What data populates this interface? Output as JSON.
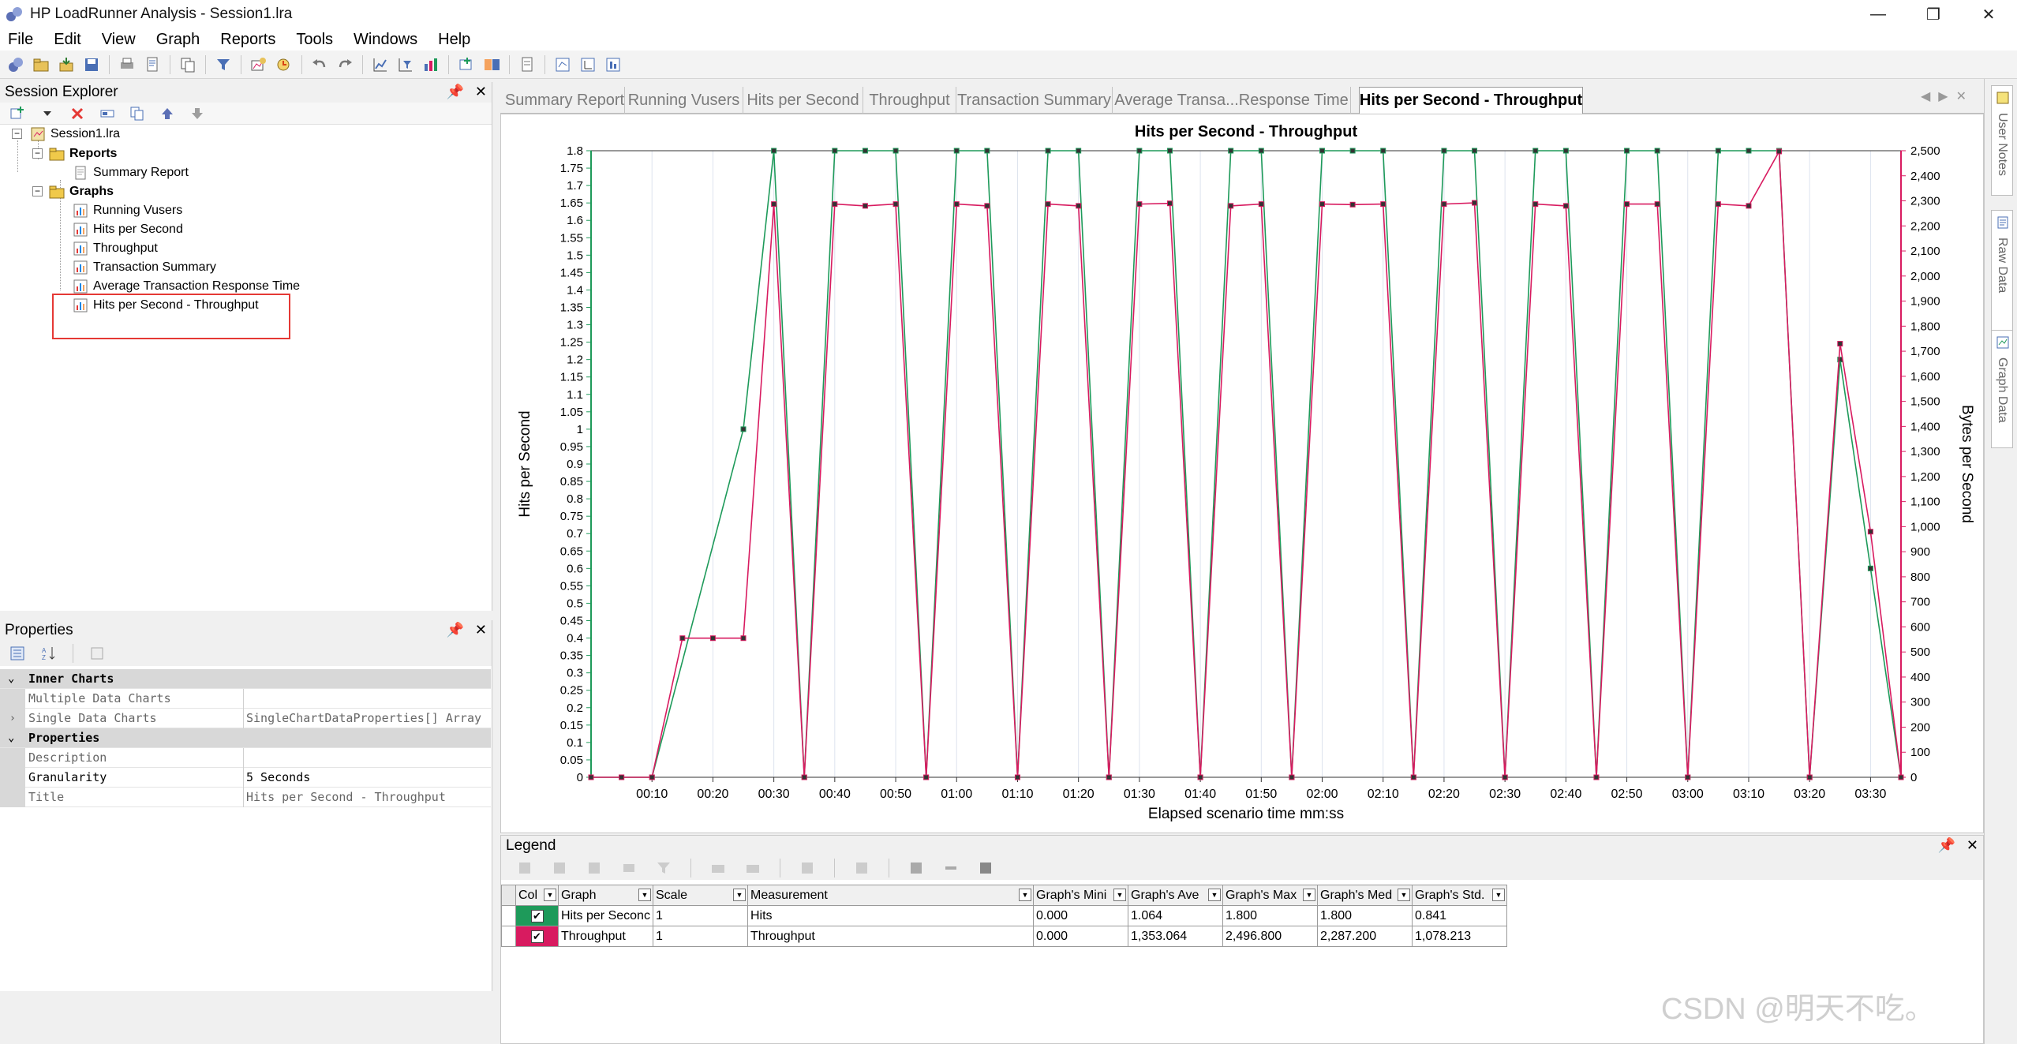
{
  "window": {
    "title": "HP LoadRunner Analysis - Session1.lra",
    "controls": [
      "—",
      "❐",
      "✕"
    ]
  },
  "menu": [
    "File",
    "Edit",
    "View",
    "Graph",
    "Reports",
    "Tools",
    "Windows",
    "Help"
  ],
  "session_explorer": {
    "title": "Session Explorer",
    "tree": {
      "root": "Session1.lra",
      "reports_label": "Reports",
      "reports": [
        "Summary Report"
      ],
      "graphs_label": "Graphs",
      "graphs": [
        "Running Vusers",
        "Hits per Second",
        "Throughput",
        "Transaction Summary",
        "Average Transaction Response Time",
        "Hits per Second - Throughput"
      ]
    }
  },
  "properties": {
    "title": "Properties",
    "rows": [
      {
        "name": "Inner Charts",
        "category": true
      },
      {
        "name": "Multiple Data Charts",
        "value": ""
      },
      {
        "name": "Single Data Charts",
        "value": "SingleChartDataProperties[] Array",
        "expandable": true
      },
      {
        "name": "Properties",
        "category": true
      },
      {
        "name": "Description",
        "value": ""
      },
      {
        "name": "Granularity",
        "value": "5 Seconds"
      },
      {
        "name": "Title",
        "value": "Hits per Second - Throughput"
      }
    ]
  },
  "tabs": [
    "Summary Report",
    "Running Vusers",
    "Hits per Second",
    "Throughput",
    "Transaction Summary",
    "Average Transa...Response Time",
    "Hits per Second - Throughput"
  ],
  "active_tab": "Hits per Second - Throughput",
  "chart_data": {
    "type": "line",
    "title": "Hits per Second - Throughput",
    "xlabel": "Elapsed scenario time mm:ss",
    "ylabel": "Hits per Second",
    "y2label": "Bytes per Second",
    "xlim": [
      0,
      215
    ],
    "ylim": [
      0,
      1.8
    ],
    "y2lim": [
      0,
      2500
    ],
    "x_ticks": [
      "00:10",
      "00:20",
      "00:30",
      "00:40",
      "00:50",
      "01:00",
      "01:10",
      "01:20",
      "01:30",
      "01:40",
      "01:50",
      "02:00",
      "02:10",
      "02:20",
      "02:30",
      "02:40",
      "02:50",
      "03:00",
      "03:10",
      "03:20",
      "03:30"
    ],
    "y_ticks": [
      "0",
      "0.05",
      "0.1",
      "0.15",
      "0.2",
      "0.25",
      "0.3",
      "0.35",
      "0.4",
      "0.45",
      "0.5",
      "0.55",
      "0.6",
      "0.65",
      "0.7",
      "0.75",
      "0.8",
      "0.85",
      "0.9",
      "0.95",
      "1",
      "1.05",
      "1.1",
      "1.15",
      "1.2",
      "1.25",
      "1.3",
      "1.35",
      "1.4",
      "1.45",
      "1.5",
      "1.55",
      "1.6",
      "1.65",
      "1.7",
      "1.75",
      "1.8"
    ],
    "y2_ticks": [
      "0",
      "100",
      "200",
      "300",
      "400",
      "500",
      "600",
      "700",
      "800",
      "900",
      "1,000",
      "1,100",
      "1,200",
      "1,300",
      "1,400",
      "1,500",
      "1,600",
      "1,700",
      "1,800",
      "1,900",
      "2,000",
      "2,100",
      "2,200",
      "2,300",
      "2,400",
      "2,500"
    ],
    "grid": true,
    "colors": {
      "hits": "#1e9a5a",
      "throughput": "#d81b60"
    },
    "series": [
      {
        "name": "Hits per Second",
        "axis": "left",
        "x": [
          0,
          5,
          10,
          25,
          30,
          35,
          40,
          45,
          50,
          55,
          60,
          65,
          70,
          75,
          80,
          85,
          90,
          95,
          100,
          105,
          110,
          115,
          120,
          125,
          130,
          135,
          140,
          145,
          150,
          155,
          160,
          165,
          170,
          175,
          180,
          185,
          190,
          195,
          200,
          205,
          210,
          215
        ],
        "y": [
          0,
          0,
          0,
          1.0,
          1.8,
          0,
          1.8,
          1.8,
          1.8,
          0,
          1.8,
          1.8,
          0,
          1.8,
          1.8,
          0,
          1.8,
          1.8,
          0,
          1.8,
          1.8,
          0,
          1.8,
          1.8,
          1.8,
          0,
          1.8,
          1.8,
          0,
          1.8,
          1.8,
          0,
          1.8,
          1.8,
          0,
          1.8,
          1.8,
          1.8,
          0,
          1.2,
          0.6,
          0
        ]
      },
      {
        "name": "Throughput",
        "axis": "right",
        "x": [
          0,
          5,
          10,
          15,
          20,
          25,
          30,
          35,
          40,
          45,
          50,
          55,
          60,
          65,
          70,
          75,
          80,
          85,
          90,
          95,
          100,
          105,
          110,
          115,
          120,
          125,
          130,
          135,
          140,
          145,
          150,
          155,
          160,
          165,
          170,
          175,
          180,
          185,
          190,
          195,
          200,
          205,
          210,
          215
        ],
        "y": [
          0,
          0,
          0,
          555,
          555,
          555,
          2287,
          0,
          2287,
          2280,
          2287,
          0,
          2287,
          2280,
          0,
          2287,
          2280,
          0,
          2287,
          2290,
          0,
          2280,
          2287,
          0,
          2287,
          2285,
          2287,
          0,
          2287,
          2292,
          0,
          2287,
          2280,
          0,
          2287,
          2287,
          0,
          2287,
          2280,
          2497,
          0,
          1730,
          980,
          0
        ]
      }
    ]
  },
  "legend": {
    "title": "Legend",
    "columns": [
      "Col",
      "Graph",
      "Scale",
      "Measurement",
      "Graph's Mini",
      "Graph's Ave",
      "Graph's Max",
      "Graph's Med",
      "Graph's Std."
    ],
    "rows": [
      {
        "color": "#1e9a5a",
        "checked": "✔",
        "graph": "Hits per Seconc",
        "scale": "1",
        "measurement": "Hits",
        "min": "0.000",
        "avg": "1.064",
        "max": "1.800",
        "med": "1.800",
        "std": "0.841"
      },
      {
        "color": "#d81b60",
        "checked": "✔",
        "graph": "Throughput",
        "scale": "1",
        "measurement": "Throughput",
        "min": "0.000",
        "avg": "1,353.064",
        "max": "2,496.800",
        "med": "2,287.200",
        "std": "1,078.213"
      }
    ]
  },
  "side_tabs": [
    "User Notes",
    "Raw Data",
    "Graph Data"
  ],
  "watermark": "CSDN @明天不吃。"
}
